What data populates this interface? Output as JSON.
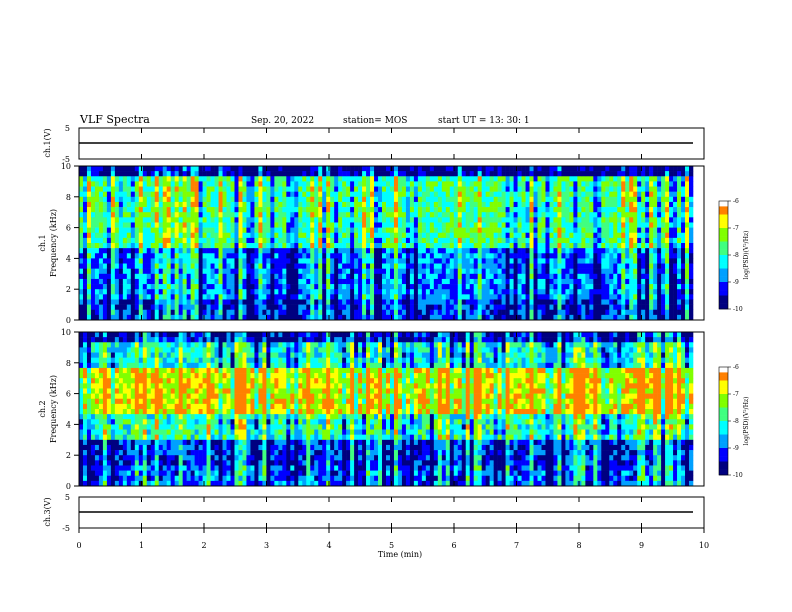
{
  "header": {
    "title": "VLF Spectra",
    "date": "Sep. 20, 2022",
    "station": "station= MOS",
    "start": "start  UT =   13: 30: 1"
  },
  "chart_data": [
    {
      "type": "line",
      "panel": "ch1-waveform",
      "ylabel": "ch.1(V)",
      "ylim": [
        -5,
        5
      ],
      "yticks": [
        "5",
        "-5"
      ],
      "x": [
        0,
        10
      ],
      "series": [
        {
          "values": [
            0,
            0
          ]
        }
      ],
      "grid": false
    },
    {
      "type": "heatmap",
      "panel": "ch1-spectrogram",
      "ylabel_line1": "ch.1",
      "ylabel_line2": "Frequency (kHz)",
      "ylim": [
        0,
        10
      ],
      "yticks": [
        "0",
        "2",
        "4",
        "6",
        "8",
        "10"
      ],
      "xlim": [
        0,
        10
      ],
      "colorbar": {
        "label": "log(PSD)(V²/Hz)",
        "range": [
          -10,
          -6
        ],
        "ticks": [
          "-6",
          "-7",
          "-8",
          "-9",
          "-10"
        ]
      }
    },
    {
      "type": "heatmap",
      "panel": "ch2-spectrogram",
      "ylabel_line1": "ch.2",
      "ylabel_line2": "Frequency (kHz)",
      "ylim": [
        0,
        10
      ],
      "yticks": [
        "0",
        "2",
        "4",
        "6",
        "8",
        "10"
      ],
      "xlim": [
        0,
        10
      ],
      "colorbar": {
        "label": "log(PSD)(V²/Hz)",
        "range": [
          -10,
          -6
        ],
        "ticks": [
          "-6",
          "-7",
          "-8",
          "-9",
          "-10"
        ]
      }
    },
    {
      "type": "line",
      "panel": "ch3-waveform",
      "ylabel": "ch.3(V)",
      "ylim": [
        -5,
        5
      ],
      "yticks": [
        "5",
        "-5"
      ],
      "x": [
        0,
        10
      ],
      "series": [
        {
          "values": [
            0,
            0
          ]
        }
      ],
      "grid": false
    }
  ],
  "xaxis": {
    "label": "Time (min)",
    "ticks": [
      "0",
      "1",
      "2",
      "3",
      "4",
      "5",
      "6",
      "7",
      "8",
      "9",
      "10"
    ],
    "range": [
      0,
      10
    ]
  },
  "colors": {
    "jet": [
      "#000080",
      "#0000ff",
      "#00a0ff",
      "#00ffff",
      "#40ff80",
      "#80ff00",
      "#ffff00",
      "#ff8000",
      "#ff0000",
      "#ffffff"
    ]
  }
}
